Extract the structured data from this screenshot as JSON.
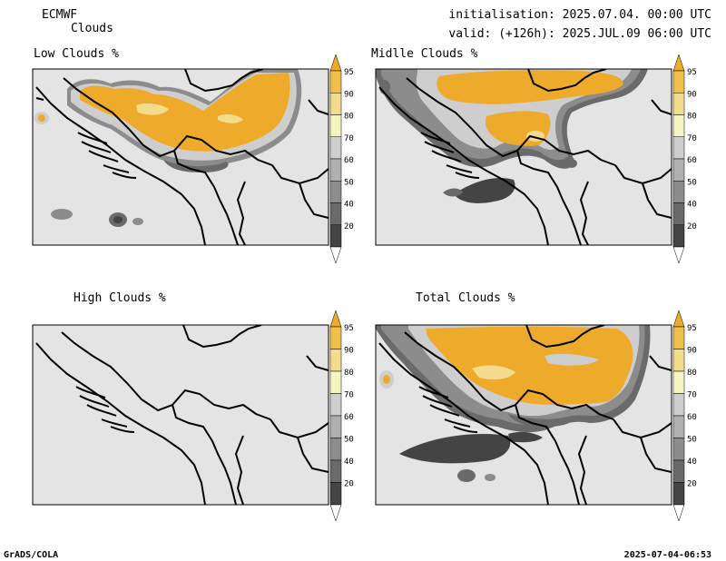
{
  "header": {
    "model": "ECMWF",
    "product": "Clouds",
    "init": "initialisation: 2025.07.04. 00:00 UTC",
    "valid": "valid: (+126h): 2025.JUL.09 06:00 UTC"
  },
  "footer": {
    "left": "GrADS/COLA",
    "right": "2025-07-04-06:53"
  },
  "colors": {
    "background": "#e4e4e4",
    "frame": "#000000",
    "border": "#000000",
    "levels": [
      "#ffffff",
      "#444444",
      "#6a6a6a",
      "#8c8c8c",
      "#b0b0b0",
      "#cecece",
      "#f5f5c2",
      "#f4dc8e",
      "#f0c04a",
      "#eeaa2b"
    ]
  },
  "scale": {
    "labels": [
      "20",
      "40",
      "50",
      "60",
      "70",
      "80",
      "90",
      "95"
    ]
  },
  "panels": [
    {
      "id": "low",
      "title": "Low Clouds %"
    },
    {
      "id": "mid",
      "title": "Midlle Clouds %"
    },
    {
      "id": "high",
      "title": "High Clouds %"
    },
    {
      "id": "total",
      "title": "Total Clouds %"
    }
  ]
}
